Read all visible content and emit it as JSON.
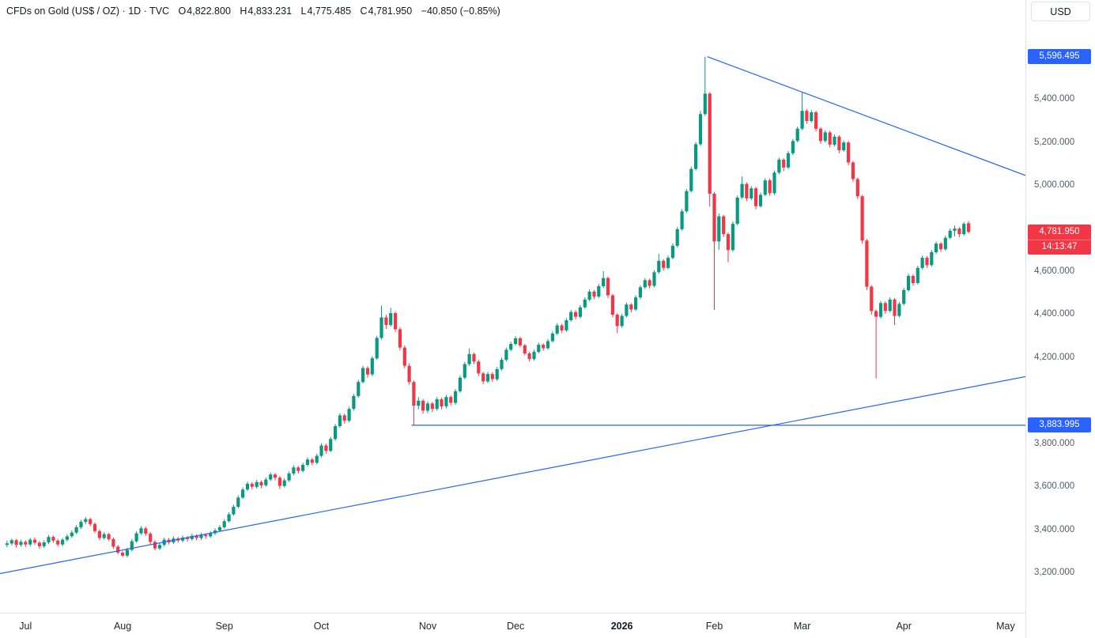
{
  "header": {
    "symbol": "CFDs on Gold (US$ / OZ) · 1D · TVC",
    "open_label": "O",
    "open": "4,822.800",
    "high_label": "H",
    "high": "4,833.231",
    "low_label": "L",
    "low": "4,775.485",
    "close_label": "C",
    "close": "4,781.950",
    "change": "−40.850 (−0.85%)",
    "currency_button": "USD"
  },
  "chart_data": {
    "type": "candlestick",
    "title": "CFDs on Gold (US$ / OZ) 1D TVC",
    "timeframe": "1D",
    "ylim": [
      3013,
      5860
    ],
    "grid": false,
    "colors": {
      "up": "#089981",
      "down": "#f23645",
      "line": "#2962ff",
      "current": "#f23645"
    },
    "price_axis_labels": [
      {
        "price": 5400,
        "label": "5,400.000"
      },
      {
        "price": 5200,
        "label": "5,200.000"
      },
      {
        "price": 5000,
        "label": "5,000.000"
      },
      {
        "price": 4600,
        "label": "4,600.000"
      },
      {
        "price": 4400,
        "label": "4,400.000"
      },
      {
        "price": 4200,
        "label": "4,200.000"
      },
      {
        "price": 3800,
        "label": "3,800.000"
      },
      {
        "price": 3600,
        "label": "3,600.000"
      },
      {
        "price": 3400,
        "label": "3,400.000"
      },
      {
        "price": 3200,
        "label": "3,200.000"
      }
    ],
    "time_axis_labels": [
      {
        "label": "Jul",
        "index": 4
      },
      {
        "label": "Aug",
        "index": 25
      },
      {
        "label": "Sep",
        "index": 47
      },
      {
        "label": "Oct",
        "index": 68
      },
      {
        "label": "Nov",
        "index": 91
      },
      {
        "label": "Dec",
        "index": 110
      },
      {
        "label": "2026",
        "index": 133,
        "bold": true
      },
      {
        "label": "Feb",
        "index": 153
      },
      {
        "label": "Mar",
        "index": 172
      },
      {
        "label": "Apr",
        "index": 194
      },
      {
        "label": "May",
        "index": 216
      }
    ],
    "annotations": {
      "trendlines": [
        {
          "name": "descending-resistance",
          "from": {
            "index": 151.5,
            "price": 5596.495
          },
          "to": {
            "edge": "right",
            "price": 5045
          }
        },
        {
          "name": "ascending-support",
          "from": {
            "edge": "left",
            "price": 3195
          },
          "to": {
            "edge": "right",
            "price": 4110
          }
        }
      ],
      "horizontal_ray": {
        "name": "support-level",
        "price": 3883.995,
        "from_index": 87.5
      },
      "axis_badges": [
        {
          "name": "high-anchor-badge",
          "price": 5596.495,
          "label": "5,596.495",
          "bg": "#2962ff"
        },
        {
          "name": "support-anchor-badge",
          "price": 3883.995,
          "label": "3,883.995",
          "bg": "#2962ff"
        },
        {
          "name": "current-price-badge",
          "price": 4781.95,
          "label": "4,781.950",
          "timer": "14:13:47",
          "bg": "#f23645"
        }
      ]
    },
    "candles": [
      [
        3328,
        3348,
        3318,
        3335
      ],
      [
        3335,
        3358,
        3326,
        3350
      ],
      [
        3350,
        3356,
        3315,
        3328
      ],
      [
        3328,
        3352,
        3320,
        3342
      ],
      [
        3342,
        3350,
        3318,
        3330
      ],
      [
        3330,
        3360,
        3322,
        3352
      ],
      [
        3352,
        3362,
        3328,
        3338
      ],
      [
        3338,
        3346,
        3310,
        3322
      ],
      [
        3322,
        3350,
        3314,
        3340
      ],
      [
        3340,
        3374,
        3332,
        3365
      ],
      [
        3365,
        3372,
        3338,
        3348
      ],
      [
        3348,
        3356,
        3320,
        3330
      ],
      [
        3330,
        3360,
        3322,
        3352
      ],
      [
        3352,
        3378,
        3344,
        3368
      ],
      [
        3368,
        3395,
        3360,
        3385
      ],
      [
        3385,
        3420,
        3378,
        3410
      ],
      [
        3410,
        3444,
        3402,
        3435
      ],
      [
        3435,
        3458,
        3425,
        3448
      ],
      [
        3448,
        3455,
        3415,
        3425
      ],
      [
        3425,
        3432,
        3382,
        3392
      ],
      [
        3392,
        3400,
        3350,
        3360
      ],
      [
        3360,
        3388,
        3352,
        3378
      ],
      [
        3378,
        3384,
        3345,
        3355
      ],
      [
        3355,
        3362,
        3310,
        3320
      ],
      [
        3320,
        3328,
        3285,
        3292
      ],
      [
        3292,
        3300,
        3272,
        3278
      ],
      [
        3278,
        3315,
        3270,
        3305
      ],
      [
        3305,
        3355,
        3298,
        3345
      ],
      [
        3345,
        3392,
        3338,
        3382
      ],
      [
        3382,
        3415,
        3375,
        3405
      ],
      [
        3405,
        3412,
        3370,
        3380
      ],
      [
        3380,
        3388,
        3332,
        3342
      ],
      [
        3342,
        3350,
        3302,
        3312
      ],
      [
        3312,
        3338,
        3304,
        3328
      ],
      [
        3328,
        3362,
        3320,
        3352
      ],
      [
        3352,
        3360,
        3330,
        3340
      ],
      [
        3340,
        3368,
        3332,
        3358
      ],
      [
        3358,
        3366,
        3338,
        3348
      ],
      [
        3348,
        3372,
        3340,
        3362
      ],
      [
        3362,
        3370,
        3344,
        3355
      ],
      [
        3355,
        3380,
        3348,
        3370
      ],
      [
        3370,
        3378,
        3350,
        3360
      ],
      [
        3360,
        3385,
        3352,
        3375
      ],
      [
        3375,
        3382,
        3356,
        3368
      ],
      [
        3368,
        3392,
        3360,
        3382
      ],
      [
        3382,
        3405,
        3374,
        3395
      ],
      [
        3395,
        3420,
        3388,
        3410
      ],
      [
        3410,
        3448,
        3404,
        3438
      ],
      [
        3438,
        3480,
        3432,
        3470
      ],
      [
        3470,
        3515,
        3464,
        3505
      ],
      [
        3505,
        3558,
        3498,
        3548
      ],
      [
        3548,
        3595,
        3542,
        3585
      ],
      [
        3585,
        3622,
        3578,
        3612
      ],
      [
        3612,
        3620,
        3585,
        3598
      ],
      [
        3598,
        3630,
        3590,
        3620
      ],
      [
        3620,
        3628,
        3592,
        3605
      ],
      [
        3605,
        3642,
        3598,
        3632
      ],
      [
        3632,
        3665,
        3625,
        3655
      ],
      [
        3655,
        3662,
        3628,
        3640
      ],
      [
        3640,
        3648,
        3588,
        3602
      ],
      [
        3602,
        3638,
        3595,
        3628
      ],
      [
        3628,
        3670,
        3620,
        3660
      ],
      [
        3660,
        3698,
        3652,
        3688
      ],
      [
        3688,
        3695,
        3660,
        3672
      ],
      [
        3672,
        3710,
        3665,
        3700
      ],
      [
        3700,
        3735,
        3692,
        3725
      ],
      [
        3725,
        3732,
        3698,
        3710
      ],
      [
        3710,
        3752,
        3702,
        3742
      ],
      [
        3742,
        3800,
        3735,
        3790
      ],
      [
        3790,
        3798,
        3752,
        3765
      ],
      [
        3765,
        3830,
        3758,
        3820
      ],
      [
        3820,
        3890,
        3812,
        3880
      ],
      [
        3880,
        3940,
        3872,
        3930
      ],
      [
        3930,
        3938,
        3892,
        3905
      ],
      [
        3905,
        3970,
        3898,
        3960
      ],
      [
        3960,
        4030,
        3952,
        4020
      ],
      [
        4020,
        4095,
        4012,
        4085
      ],
      [
        4085,
        4160,
        4078,
        4150
      ],
      [
        4150,
        4158,
        4105,
        4120
      ],
      [
        4120,
        4205,
        4112,
        4195
      ],
      [
        4195,
        4300,
        4188,
        4290
      ],
      [
        4290,
        4440,
        4282,
        4385
      ],
      [
        4385,
        4398,
        4332,
        4350
      ],
      [
        4350,
        4430,
        4342,
        4405
      ],
      [
        4405,
        4412,
        4318,
        4330
      ],
      [
        4330,
        4340,
        4232,
        4245
      ],
      [
        4245,
        4255,
        4148,
        4160
      ],
      [
        4160,
        4172,
        4072,
        4085
      ],
      [
        4085,
        4092,
        3883.995,
        3975
      ],
      [
        3975,
        4015,
        3958,
        3998
      ],
      [
        3998,
        4006,
        3938,
        3952
      ],
      [
        3952,
        3995,
        3940,
        3985
      ],
      [
        3985,
        3992,
        3945,
        3960
      ],
      [
        3960,
        4015,
        3952,
        4005
      ],
      [
        4005,
        4012,
        3958,
        3972
      ],
      [
        3972,
        4025,
        3962,
        4015
      ],
      [
        4015,
        4022,
        3975,
        3988
      ],
      [
        3988,
        4052,
        3980,
        4042
      ],
      [
        4042,
        4115,
        4035,
        4105
      ],
      [
        4105,
        4178,
        4098,
        4168
      ],
      [
        4168,
        4240,
        4160,
        4215
      ],
      [
        4215,
        4222,
        4168,
        4180
      ],
      [
        4180,
        4188,
        4112,
        4125
      ],
      [
        4125,
        4132,
        4075,
        4088
      ],
      [
        4088,
        4132,
        4080,
        4122
      ],
      [
        4122,
        4130,
        4085,
        4098
      ],
      [
        4098,
        4155,
        4090,
        4145
      ],
      [
        4145,
        4198,
        4138,
        4188
      ],
      [
        4188,
        4245,
        4180,
        4235
      ],
      [
        4235,
        4272,
        4228,
        4262
      ],
      [
        4262,
        4298,
        4255,
        4288
      ],
      [
        4288,
        4295,
        4245,
        4255
      ],
      [
        4255,
        4262,
        4208,
        4218
      ],
      [
        4218,
        4226,
        4180,
        4192
      ],
      [
        4192,
        4235,
        4185,
        4225
      ],
      [
        4225,
        4268,
        4218,
        4258
      ],
      [
        4258,
        4265,
        4230,
        4242
      ],
      [
        4242,
        4285,
        4235,
        4275
      ],
      [
        4275,
        4320,
        4268,
        4310
      ],
      [
        4310,
        4358,
        4302,
        4348
      ],
      [
        4348,
        4355,
        4312,
        4325
      ],
      [
        4325,
        4382,
        4318,
        4372
      ],
      [
        4372,
        4420,
        4365,
        4410
      ],
      [
        4410,
        4418,
        4375,
        4388
      ],
      [
        4388,
        4442,
        4380,
        4432
      ],
      [
        4432,
        4478,
        4425,
        4468
      ],
      [
        4468,
        4515,
        4460,
        4505
      ],
      [
        4505,
        4512,
        4470,
        4482
      ],
      [
        4482,
        4540,
        4475,
        4530
      ],
      [
        4530,
        4600,
        4522,
        4568
      ],
      [
        4568,
        4575,
        4475,
        4488
      ],
      [
        4488,
        4495,
        4385,
        4398
      ],
      [
        4398,
        4405,
        4312,
        4345
      ],
      [
        4345,
        4402,
        4338,
        4392
      ],
      [
        4392,
        4455,
        4385,
        4445
      ],
      [
        4445,
        4452,
        4408,
        4422
      ],
      [
        4422,
        4488,
        4415,
        4478
      ],
      [
        4478,
        4535,
        4470,
        4525
      ],
      [
        4525,
        4568,
        4518,
        4558
      ],
      [
        4558,
        4565,
        4520,
        4532
      ],
      [
        4532,
        4605,
        4525,
        4595
      ],
      [
        4595,
        4680,
        4588,
        4648
      ],
      [
        4648,
        4655,
        4602,
        4615
      ],
      [
        4615,
        4672,
        4608,
        4662
      ],
      [
        4662,
        4728,
        4655,
        4718
      ],
      [
        4718,
        4805,
        4710,
        4795
      ],
      [
        4795,
        4888,
        4788,
        4878
      ],
      [
        4878,
        4982,
        4870,
        4972
      ],
      [
        4972,
        5085,
        4965,
        5075
      ],
      [
        5075,
        5200,
        5068,
        5190
      ],
      [
        5190,
        5345,
        5182,
        5330
      ],
      [
        5330,
        5596.495,
        5322,
        5425
      ],
      [
        5425,
        5432,
        4900,
        4960
      ],
      [
        4960,
        4968,
        4420,
        4738
      ],
      [
        4738,
        4868,
        4700,
        4855
      ],
      [
        4855,
        4862,
        4758,
        4772
      ],
      [
        4772,
        4780,
        4642,
        4698
      ],
      [
        4698,
        4832,
        4690,
        4820
      ],
      [
        4820,
        4952,
        4812,
        4942
      ],
      [
        4942,
        5040,
        4935,
        5005
      ],
      [
        5005,
        5012,
        4925,
        4938
      ],
      [
        4938,
        4995,
        4930,
        4985
      ],
      [
        4985,
        4992,
        4888,
        4902
      ],
      [
        4902,
        4965,
        4895,
        4955
      ],
      [
        4955,
        5032,
        4948,
        5022
      ],
      [
        5022,
        5030,
        4950,
        4962
      ],
      [
        4962,
        5068,
        4955,
        5058
      ],
      [
        5058,
        5128,
        5050,
        5118
      ],
      [
        5118,
        5125,
        5065,
        5082
      ],
      [
        5082,
        5158,
        5075,
        5148
      ],
      [
        5148,
        5215,
        5140,
        5205
      ],
      [
        5205,
        5272,
        5198,
        5262
      ],
      [
        5262,
        5432,
        5255,
        5345
      ],
      [
        5345,
        5352,
        5285,
        5298
      ],
      [
        5298,
        5348,
        5290,
        5338
      ],
      [
        5338,
        5345,
        5250,
        5262
      ],
      [
        5262,
        5270,
        5192,
        5205
      ],
      [
        5205,
        5255,
        5198,
        5245
      ],
      [
        5245,
        5252,
        5175,
        5188
      ],
      [
        5188,
        5235,
        5180,
        5225
      ],
      [
        5225,
        5232,
        5148,
        5162
      ],
      [
        5162,
        5208,
        5155,
        5198
      ],
      [
        5198,
        5205,
        5092,
        5105
      ],
      [
        5105,
        5112,
        5015,
        5028
      ],
      [
        5028,
        5035,
        4935,
        4948
      ],
      [
        4948,
        4955,
        4728,
        4742
      ],
      [
        4742,
        4750,
        4512,
        4528
      ],
      [
        4528,
        4535,
        4398,
        4415
      ],
      [
        4415,
        4422,
        4102,
        4388
      ],
      [
        4388,
        4462,
        4380,
        4452
      ],
      [
        4452,
        4460,
        4402,
        4415
      ],
      [
        4415,
        4478,
        4408,
        4468
      ],
      [
        4468,
        4475,
        4350,
        4392
      ],
      [
        4392,
        4458,
        4385,
        4448
      ],
      [
        4448,
        4522,
        4440,
        4512
      ],
      [
        4512,
        4588,
        4505,
        4578
      ],
      [
        4578,
        4585,
        4532,
        4545
      ],
      [
        4545,
        4625,
        4538,
        4615
      ],
      [
        4615,
        4672,
        4608,
        4662
      ],
      [
        4662,
        4670,
        4615,
        4628
      ],
      [
        4628,
        4698,
        4620,
        4688
      ],
      [
        4688,
        4738,
        4680,
        4728
      ],
      [
        4728,
        4735,
        4690,
        4702
      ],
      [
        4702,
        4765,
        4695,
        4755
      ],
      [
        4755,
        4798,
        4748,
        4788
      ],
      [
        4788,
        4812,
        4762,
        4798
      ],
      [
        4798,
        4805,
        4758,
        4772
      ],
      [
        4772,
        4828,
        4765,
        4820
      ],
      [
        4822.8,
        4833.231,
        4775.485,
        4781.95
      ]
    ]
  }
}
